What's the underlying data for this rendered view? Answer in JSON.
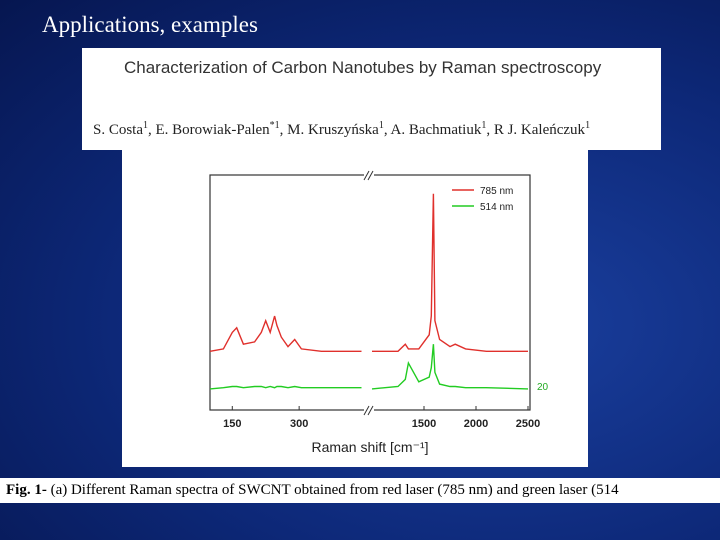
{
  "slide": {
    "title": "Applications, examples"
  },
  "paper": {
    "title": "Characterization of Carbon Nanotubes by Raman spectroscopy",
    "authors": [
      {
        "name": "S. Costa",
        "sup": "1"
      },
      {
        "name": "E. Borowiak-Palen",
        "sup": "*1"
      },
      {
        "name": "M. Kruszyńska",
        "sup": "1"
      },
      {
        "name": "A. Bachmatiuk",
        "sup": "1"
      },
      {
        "name": "R J. Kaleńczuk",
        "sup": "1"
      }
    ],
    "separator": ", "
  },
  "chart_data": {
    "type": "line",
    "xlabel": "Raman shift [cm⁻¹]",
    "ylim": [
      0,
      100
    ],
    "segments": [
      {
        "xlim": [
          100,
          450
        ],
        "xticks": [
          150,
          300
        ]
      },
      {
        "xlim": [
          1000,
          2500
        ],
        "xticks": [
          1500,
          2000,
          2500
        ]
      }
    ],
    "x": [
      100,
      130,
      150,
      160,
      175,
      200,
      215,
      225,
      235,
      245,
      250,
      260,
      275,
      290,
      305,
      350,
      440,
      700,
      1000,
      1250,
      1320,
      1350,
      1450,
      1550,
      1570,
      1590,
      1605,
      1650,
      1750,
      1800,
      1900,
      2100,
      2500
    ],
    "series": [
      {
        "name": "785 nm",
        "color": "#e0302c",
        "values": [
          25,
          26,
          33,
          35,
          28,
          29,
          33,
          38,
          33,
          40,
          36,
          31,
          27,
          30,
          26,
          25,
          25,
          null,
          25,
          25,
          28,
          26,
          26,
          32,
          40,
          92,
          38,
          30,
          27,
          28,
          26,
          25,
          25
        ]
      },
      {
        "name": "514 nm",
        "color": "#22cc22",
        "values": [
          9,
          9.5,
          10,
          10,
          9.5,
          10,
          10,
          9.5,
          10,
          9.5,
          10,
          10,
          9.5,
          10,
          9.5,
          9.5,
          9.5,
          null,
          9,
          10,
          13,
          20,
          12,
          14,
          18,
          28,
          16,
          11,
          10,
          10,
          9.5,
          9.5,
          9
        ]
      }
    ],
    "annotation": "20"
  },
  "caption": {
    "label": "Fig. 1-",
    "text": " (a) Different Raman spectra of SWCNT obtained from red laser (785 nm) and green laser (514"
  }
}
